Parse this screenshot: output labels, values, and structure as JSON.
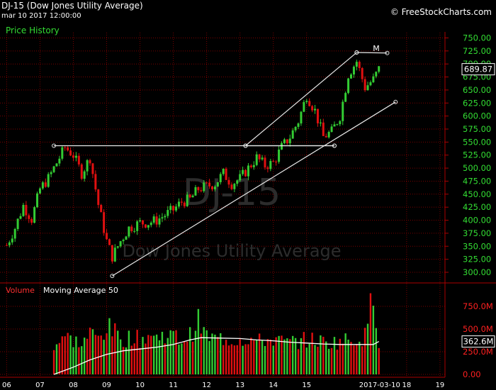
{
  "header": {
    "title": "DJ-15 (Dow Jones Utility Average)",
    "date": "mar 10 2017 12:00:00",
    "watermark_symbol": "DJ-15",
    "watermark_name": "Dow Jones Utility Average",
    "brand": "© FreeStockCharts.com"
  },
  "colors": {
    "background": "#000000",
    "up": "#33cc33",
    "down": "#e01010",
    "axis_price": "#33dd33",
    "axis_volume": "#ff2020",
    "grid": "#7a0000",
    "trendline": "#e8e8e8",
    "ma": "#ffffff"
  },
  "chart_data": [
    {
      "type": "candlestick",
      "title": "Price History",
      "ylim": [
        285,
        752
      ],
      "x_ticks": [
        "06",
        "07",
        "08",
        "09",
        "10",
        "11",
        "12",
        "13",
        "14",
        "15",
        "2017-03-10",
        "18",
        "19"
      ],
      "y_ticks": [
        300,
        325,
        350,
        375,
        400,
        425,
        450,
        475,
        500,
        525,
        550,
        575,
        600,
        625,
        650,
        675,
        700,
        725,
        750
      ],
      "last_value": "689.87",
      "last_value_numeric": 689.87,
      "annotation": "M",
      "grid": true,
      "close_series": {
        "x": [
          "2006-01",
          "2006-04",
          "2006-07",
          "2006-10",
          "2007-01",
          "2007-04",
          "2007-07",
          "2007-10",
          "2008-01",
          "2008-04",
          "2008-07",
          "2008-10",
          "2009-01",
          "2009-03",
          "2009-06",
          "2009-09",
          "2010-01",
          "2010-04",
          "2010-07",
          "2010-10",
          "2011-01",
          "2011-04",
          "2011-07",
          "2011-10",
          "2012-01",
          "2012-04",
          "2012-07",
          "2012-10",
          "2013-01",
          "2013-04",
          "2013-07",
          "2013-10",
          "2014-01",
          "2014-04",
          "2014-07",
          "2014-10",
          "2015-01",
          "2015-04",
          "2015-07",
          "2015-10",
          "2016-01",
          "2016-04",
          "2016-07",
          "2016-10",
          "2017-01",
          "2017-03"
        ],
        "y": [
          352,
          385,
          428,
          402,
          460,
          480,
          510,
          540,
          525,
          490,
          520,
          430,
          360,
          330,
          360,
          385,
          395,
          395,
          400,
          410,
          420,
          435,
          440,
          460,
          465,
          470,
          490,
          470,
          480,
          500,
          520,
          505,
          510,
          540,
          560,
          590,
          640,
          610,
          560,
          570,
          600,
          680,
          705,
          655,
          670,
          690
        ]
      },
      "trendlines": [
        {
          "name": "support-line-lower",
          "points": [
            [
              "2009-03",
              293
            ],
            [
              "2017-09",
              627
            ]
          ]
        },
        {
          "name": "resistance-horizontal",
          "points": [
            [
              "2007-06",
              543
            ],
            [
              "2015-11",
              543
            ]
          ]
        },
        {
          "name": "channel-upper",
          "points": [
            [
              "2013-03",
              543
            ],
            [
              "2016-07",
              722
            ]
          ]
        },
        {
          "name": "channel-lower",
          "points": [
            [
              "2013-03",
              543
            ],
            [
              "2015-11",
              543
            ]
          ]
        },
        {
          "name": "top-line",
          "points": [
            [
              "2016-07",
              722
            ],
            [
              "2017-06",
              721
            ]
          ]
        }
      ]
    },
    {
      "type": "bar",
      "series_label": "Volume",
      "overlay_label": "Moving Average 50",
      "ylim": [
        0,
        1000000000
      ],
      "y_ticks": [
        "0.00",
        "250.0M",
        "500.0M",
        "750.0M"
      ],
      "y_tick_values": [
        0,
        250000000,
        500000000,
        750000000
      ],
      "last_value": "362.6M",
      "last_value_numeric": 362600000,
      "volume_series": {
        "x": [
          "2007-06",
          "2007-09",
          "2008-01",
          "2008-04",
          "2008-07",
          "2008-10",
          "2009-01",
          "2009-04",
          "2009-07",
          "2009-10",
          "2010-01",
          "2010-04",
          "2010-07",
          "2010-10",
          "2011-01",
          "2011-04",
          "2011-07",
          "2011-10",
          "2012-01",
          "2012-04",
          "2012-07",
          "2012-10",
          "2013-01",
          "2013-04",
          "2013-07",
          "2013-10",
          "2014-01",
          "2014-04",
          "2014-07",
          "2014-10",
          "2015-01",
          "2015-04",
          "2015-07",
          "2015-10",
          "2016-01",
          "2016-04",
          "2016-07",
          "2016-10",
          "2017-01",
          "2017-03"
        ],
        "y": [
          300000000,
          420000000,
          380000000,
          330000000,
          450000000,
          400000000,
          520000000,
          460000000,
          380000000,
          420000000,
          380000000,
          440000000,
          400000000,
          450000000,
          420000000,
          380000000,
          430000000,
          580000000,
          420000000,
          390000000,
          400000000,
          380000000,
          390000000,
          400000000,
          360000000,
          380000000,
          390000000,
          360000000,
          350000000,
          370000000,
          380000000,
          380000000,
          360000000,
          350000000,
          370000000,
          380000000,
          400000000,
          420000000,
          920000000,
          370000000
        ]
      },
      "ma_series": {
        "x": [
          "2007-06",
          "2008-01",
          "2008-07",
          "2009-01",
          "2009-07",
          "2010-01",
          "2010-07",
          "2011-01",
          "2011-07",
          "2011-11",
          "2012-06",
          "2013-01",
          "2013-07",
          "2014-01",
          "2014-07",
          "2015-01",
          "2015-07",
          "2016-01",
          "2016-07",
          "2017-01",
          "2017-03"
        ],
        "y": [
          0,
          80000000,
          160000000,
          220000000,
          260000000,
          280000000,
          300000000,
          330000000,
          380000000,
          405000000,
          400000000,
          395000000,
          380000000,
          370000000,
          355000000,
          345000000,
          335000000,
          330000000,
          330000000,
          330000000,
          362600000
        ]
      }
    }
  ]
}
